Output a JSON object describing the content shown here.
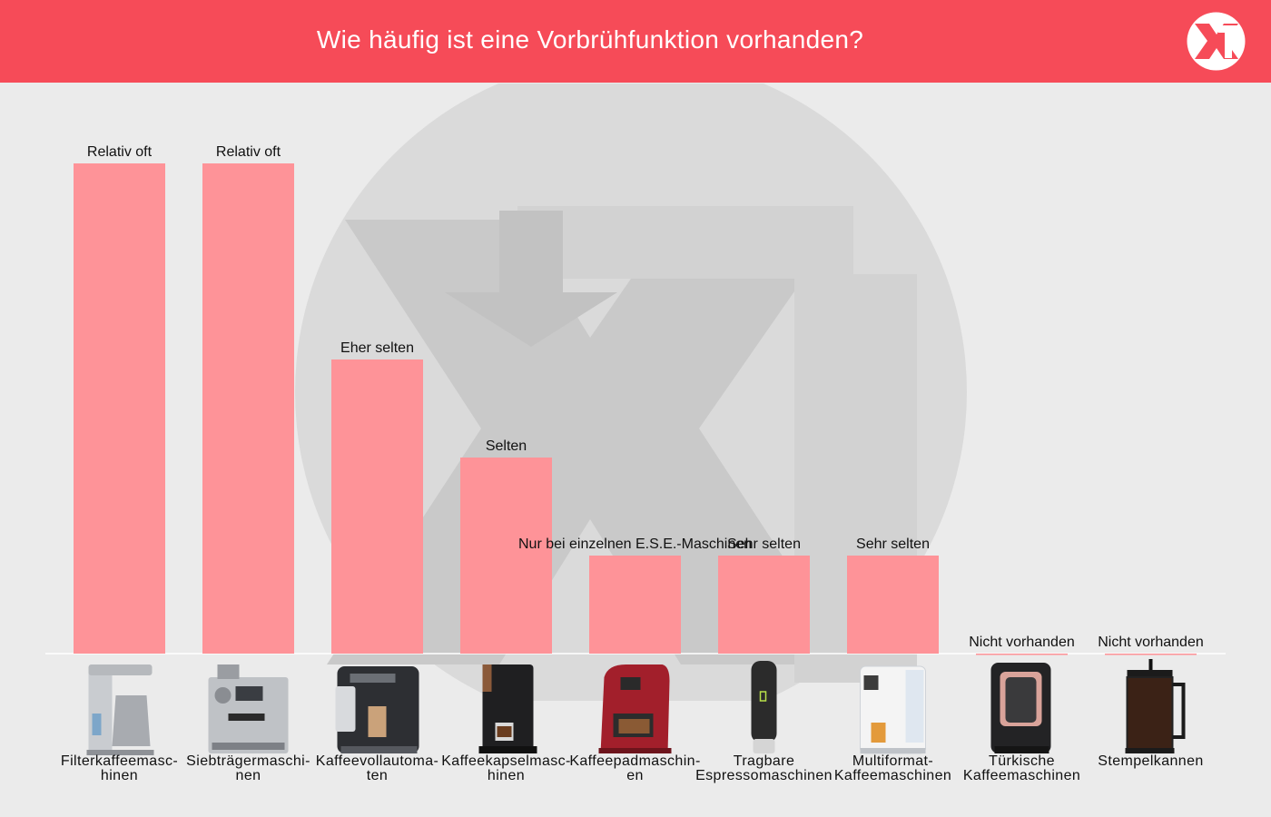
{
  "header": {
    "title": "Wie häufig ist eine Vorbrühfunktion vorhanden?",
    "accent_color": "#f64b58",
    "logo_icon": "xt-logo-icon"
  },
  "chart_data": {
    "type": "bar",
    "title": "Wie häufig ist eine Vorbrühfunktion vorhanden?",
    "xlabel": "",
    "ylabel": "",
    "grid": false,
    "legend": "none",
    "bar_color": "#fe9398",
    "ylim": [
      0,
      5
    ],
    "categories": [
      [
        "Filterkaffeemasc-",
        "hinen"
      ],
      [
        "Siebträgermaschi-",
        "nen"
      ],
      [
        "Kaffeevollautoma-",
        "ten"
      ],
      [
        "Kaffeekapselmasc-",
        "hinen"
      ],
      [
        "Kaffeepadmaschin-",
        "en"
      ],
      [
        "Tragbare",
        "Espressomaschinen"
      ],
      [
        "Multiformat-",
        "Kaffeemaschinen"
      ],
      [
        "Türkische",
        "Kaffeemaschinen"
      ],
      [
        "Stempelkannen"
      ]
    ],
    "values": [
      5,
      5,
      3,
      2,
      1,
      1,
      1,
      0,
      0
    ],
    "data_labels": [
      "Relativ oft",
      "Relativ oft",
      "Eher selten",
      "Selten",
      "Nur bei einzelnen E.S.E.-Maschinen",
      "Sehr selten",
      "Sehr selten",
      "Nicht vorhanden",
      "Nicht vorhanden"
    ],
    "product_icons": [
      "filter-coffee-machine-icon",
      "espresso-portafilter-machine-icon",
      "fully-automatic-coffee-machine-icon",
      "capsule-machine-icon",
      "pad-machine-icon",
      "portable-espresso-maker-icon",
      "multiformat-machine-icon",
      "turkish-coffee-machine-icon",
      "french-press-icon"
    ]
  }
}
